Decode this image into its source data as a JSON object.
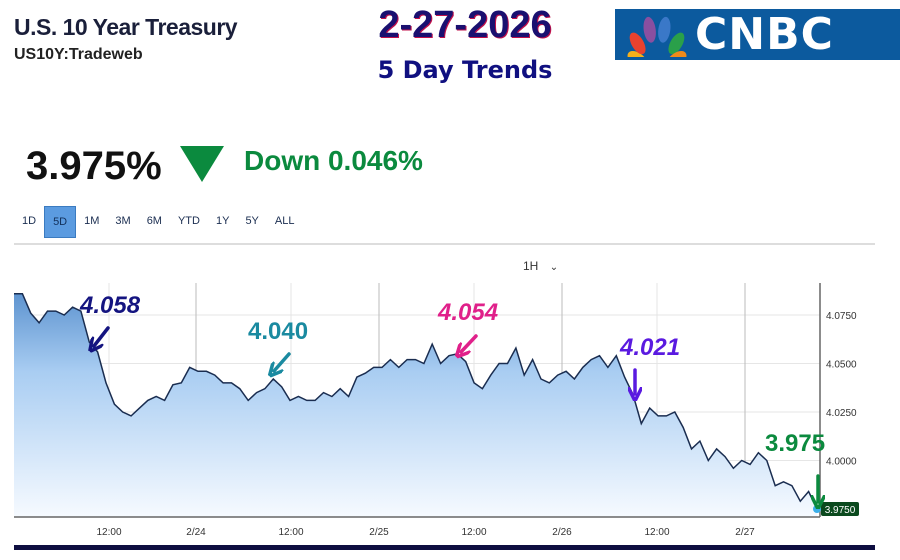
{
  "header": {
    "title": "U.S. 10 Year Treasury",
    "symbol": "US10Y:Tradeweb",
    "date": "2-27-2026",
    "subtitle": "5 Day Trends",
    "logo": "CNBC"
  },
  "quote": {
    "price": "3.975%",
    "direction_icon": "down-triangle-icon",
    "change": "Down 0.046%",
    "change_color": "#0b8a3e"
  },
  "ranges": [
    {
      "label": "1D"
    },
    {
      "label": "5D",
      "selected": true
    },
    {
      "label": "1M"
    },
    {
      "label": "3M"
    },
    {
      "label": "6M"
    },
    {
      "label": "YTD"
    },
    {
      "label": "1Y"
    },
    {
      "label": "5Y"
    },
    {
      "label": "ALL"
    }
  ],
  "interval": {
    "label": "1H",
    "icon": "chevron-down-icon"
  },
  "annotations": [
    {
      "text": "4.058",
      "color": "#141480",
      "arrow": "down-left"
    },
    {
      "text": "4.040",
      "color": "#1a8aa0",
      "arrow": "down-left"
    },
    {
      "text": "4.054",
      "color": "#e0208a",
      "arrow": "down-left"
    },
    {
      "text": "4.021",
      "color": "#5a1ae0",
      "arrow": "down"
    },
    {
      "text": "3.975",
      "color": "#0b8a3e",
      "arrow": "down"
    }
  ],
  "chart_data": {
    "type": "area",
    "x_ticks": [
      "12:00",
      "2/24",
      "12:00",
      "2/25",
      "12:00",
      "2/26",
      "12:00",
      "2/27"
    ],
    "y_ticks": [
      "4.0750",
      "4.0500",
      "4.0250",
      "4.0000"
    ],
    "ylim": [
      3.97,
      4.09
    ],
    "last_value_label": "3.9750",
    "grid": true,
    "line_color": "#1a2d50",
    "fill_color": "#7fb0e6",
    "values": [
      4.086,
      4.086,
      4.076,
      4.071,
      4.077,
      4.077,
      4.075,
      4.079,
      4.077,
      4.061,
      4.056,
      4.04,
      4.029,
      4.025,
      4.023,
      4.027,
      4.031,
      4.033,
      4.031,
      4.039,
      4.04,
      4.048,
      4.046,
      4.046,
      4.044,
      4.04,
      4.04,
      4.037,
      4.031,
      4.035,
      4.037,
      4.042,
      4.038,
      4.031,
      4.033,
      4.031,
      4.031,
      4.035,
      4.033,
      4.037,
      4.033,
      4.043,
      4.045,
      4.048,
      4.048,
      4.052,
      4.048,
      4.052,
      4.052,
      4.05,
      4.06,
      4.05,
      4.054,
      4.055,
      4.051,
      4.04,
      4.037,
      4.044,
      4.05,
      4.05,
      4.058,
      4.044,
      4.052,
      4.042,
      4.04,
      4.044,
      4.046,
      4.042,
      4.048,
      4.052,
      4.054,
      4.048,
      4.054,
      4.043,
      4.034,
      4.019,
      4.027,
      4.023,
      4.023,
      4.025,
      4.017,
      4.006,
      4.01,
      4.0,
      4.006,
      4.002,
      3.996,
      4.0,
      3.998,
      4.004,
      4.0,
      3.987,
      3.989,
      3.987,
      3.979,
      3.984,
      3.975
    ]
  }
}
